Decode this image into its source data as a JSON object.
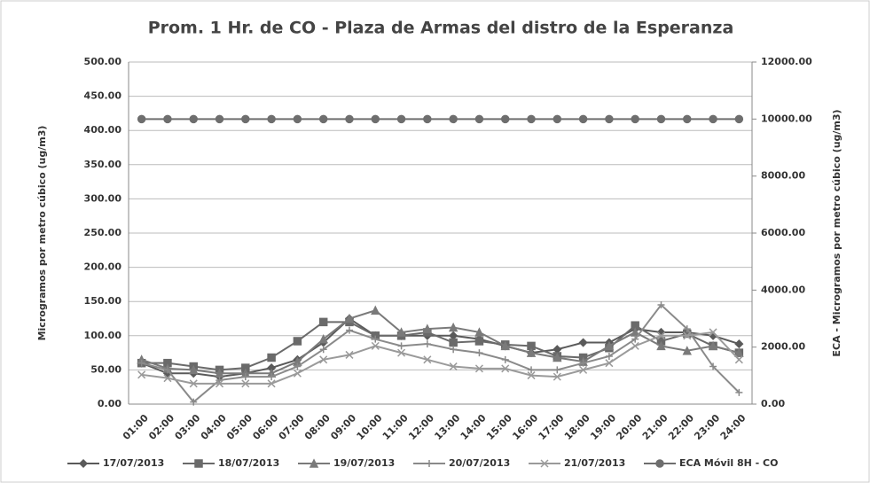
{
  "chart_data": {
    "type": "line",
    "title": "Prom. 1 Hr. de CO - Plaza de Armas del distro de la Esperanza",
    "y_label": "Microgramos por metro cúbico (ug/m3)",
    "y2_label": "ECA - Microgramos por metro cúbico (ug/m3)",
    "categories": [
      "01:00",
      "02:00",
      "03:00",
      "04:00",
      "05:00",
      "06:00",
      "07:00",
      "08:00",
      "09:00",
      "10:00",
      "11:00",
      "12:00",
      "13:00",
      "14:00",
      "15:00",
      "16:00",
      "17:00",
      "18:00",
      "19:00",
      "20:00",
      "21:00",
      "22:00",
      "23:00",
      "24:00"
    ],
    "series": [
      {
        "name": "17/07/2013",
        "color": "#5a5a5a",
        "marker": "diamond",
        "values": [
          60,
          45,
          45,
          40,
          45,
          53,
          65,
          90,
          125,
          100,
          100,
          100,
          100,
          95,
          85,
          75,
          80,
          90,
          90,
          110,
          105,
          105,
          100,
          88
        ]
      },
      {
        "name": "18/07/2013",
        "color": "#6a6a6a",
        "marker": "square",
        "values": [
          60,
          60,
          55,
          50,
          53,
          68,
          92,
          120,
          120,
          100,
          100,
          105,
          90,
          92,
          87,
          85,
          70,
          68,
          82,
          115,
          92,
          103,
          85,
          75
        ]
      },
      {
        "name": "19/07/2013",
        "color": "#7a7a7a",
        "marker": "triangle",
        "values": [
          65,
          52,
          50,
          45,
          45,
          45,
          62,
          95,
          125,
          137,
          105,
          110,
          112,
          105,
          85,
          75,
          68,
          62,
          85,
          105,
          85,
          78,
          85,
          75
        ]
      },
      {
        "name": "20/07/2013",
        "color": "#8a8a8a",
        "marker": "cross",
        "values": [
          60,
          50,
          3,
          35,
          40,
          40,
          55,
          80,
          108,
          95,
          85,
          88,
          80,
          75,
          65,
          50,
          50,
          60,
          70,
          95,
          145,
          110,
          55,
          17
        ]
      },
      {
        "name": "21/07/2013",
        "color": "#9a9a9a",
        "marker": "x",
        "values": [
          43,
          38,
          30,
          30,
          30,
          30,
          45,
          65,
          72,
          85,
          75,
          65,
          55,
          52,
          52,
          42,
          40,
          50,
          60,
          85,
          100,
          100,
          105,
          65
        ]
      },
      {
        "name": "ECA Móvil 8H - CO",
        "color": "#6e6e6e",
        "marker": "circle",
        "axis": "y2",
        "values": [
          10000,
          10000,
          10000,
          10000,
          10000,
          10000,
          10000,
          10000,
          10000,
          10000,
          10000,
          10000,
          10000,
          10000,
          10000,
          10000,
          10000,
          10000,
          10000,
          10000,
          10000,
          10000,
          10000,
          10000
        ]
      }
    ],
    "ylim": [
      0,
      500
    ],
    "yticks": [
      {
        "value": 0,
        "label": "0.00"
      },
      {
        "value": 50,
        "label": "50.00"
      },
      {
        "value": 100,
        "label": "100.00"
      },
      {
        "value": 150,
        "label": "150.00"
      },
      {
        "value": 200,
        "label": "200.00"
      },
      {
        "value": 250,
        "label": "250.00"
      },
      {
        "value": 300,
        "label": "300.00"
      },
      {
        "value": 350,
        "label": "350.00"
      },
      {
        "value": 400,
        "label": "400.00"
      },
      {
        "value": 450,
        "label": "450.00"
      },
      {
        "value": 500,
        "label": "500.00"
      }
    ],
    "y2lim": [
      0,
      12000
    ],
    "y2ticks": [
      {
        "value": 0,
        "label": "0.00"
      },
      {
        "value": 2000,
        "label": "2000.00"
      },
      {
        "value": 4000,
        "label": "4000.00"
      },
      {
        "value": 6000,
        "label": "6000.00"
      },
      {
        "value": 8000,
        "label": "8000.00"
      },
      {
        "value": 10000,
        "label": "10000.00"
      },
      {
        "value": 12000,
        "label": "12000.00"
      }
    ],
    "grid": true,
    "legend": "bottom"
  }
}
